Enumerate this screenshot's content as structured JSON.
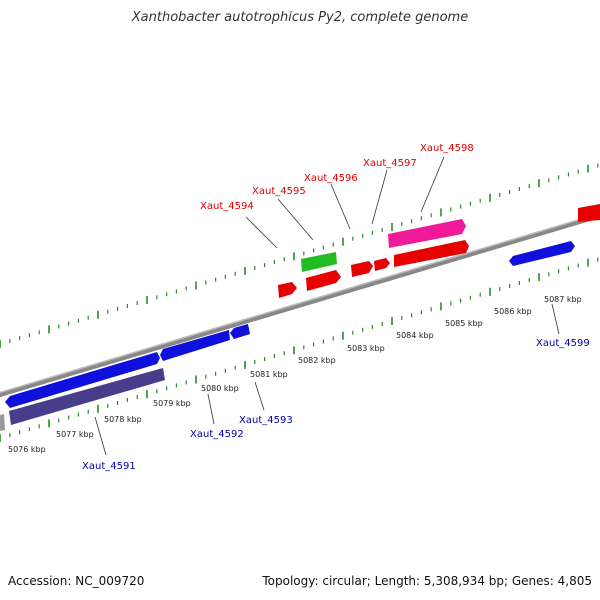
{
  "title": "Xanthobacter autotrophicus Py2, complete genome",
  "footer": {
    "accession": "Accession: NC_009720",
    "summary": "Topology: circular; Length: 5,308,934 bp; Genes: 4,805"
  },
  "colors": {
    "backbone": "#888888",
    "tick": "#2a8a2a",
    "label_top": "#dd0000",
    "label_bottom": "#0000aa",
    "gene_red": "#ee0000",
    "gene_pink": "#ee1a9a",
    "gene_green": "#22bb22",
    "gene_blue": "#1010dd",
    "gene_navy": "#483d8b"
  },
  "scale": {
    "unit": "kbp",
    "labels": [
      "5076 kbp",
      "5077 kbp",
      "5078 kbp",
      "5079 kbp",
      "5080 kbp",
      "5081 kbp",
      "5082 kbp",
      "5083 kbp",
      "5084 kbp",
      "5085 kbp",
      "5086 kbp",
      "5087 kbp"
    ]
  },
  "gene_labels_top": [
    "Xaut_4594",
    "Xaut_4595",
    "Xaut_4596",
    "Xaut_4597",
    "Xaut_4598"
  ],
  "gene_labels_bottom": [
    "Xaut_4591",
    "Xaut_4592",
    "Xaut_4593",
    "Xaut_4599"
  ]
}
